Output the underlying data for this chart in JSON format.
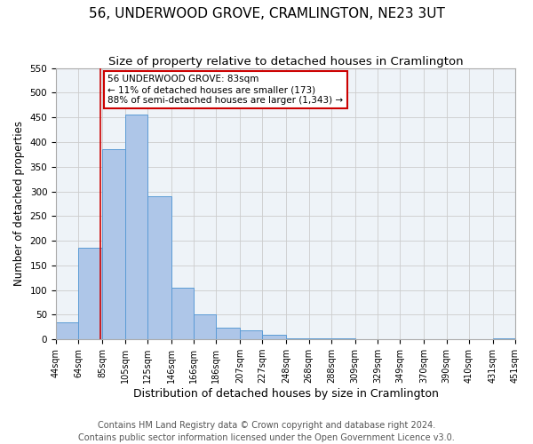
{
  "title": "56, UNDERWOOD GROVE, CRAMLINGTON, NE23 3UT",
  "subtitle": "Size of property relative to detached houses in Cramlington",
  "xlabel": "Distribution of detached houses by size in Cramlington",
  "ylabel": "Number of detached properties",
  "bin_edges": [
    44,
    64,
    85,
    105,
    125,
    146,
    166,
    186,
    207,
    227,
    248,
    268,
    288,
    309,
    329,
    349,
    370,
    390,
    410,
    431,
    451
  ],
  "bar_heights": [
    35,
    185,
    385,
    455,
    290,
    105,
    50,
    23,
    18,
    10,
    2,
    2,
    2,
    0,
    0,
    0,
    0,
    0,
    0,
    2
  ],
  "bar_color": "#aec6e8",
  "bar_edge_color": "#5b9bd5",
  "vline_x": 83,
  "vline_color": "#cc0000",
  "annotation_line1": "56 UNDERWOOD GROVE: 83sqm",
  "annotation_line2": "← 11% of detached houses are smaller (173)",
  "annotation_line3": "88% of semi-detached houses are larger (1,343) →",
  "annotation_box_color": "#ffffff",
  "annotation_box_edge_color": "#cc0000",
  "ylim": [
    0,
    550
  ],
  "yticks": [
    0,
    50,
    100,
    150,
    200,
    250,
    300,
    350,
    400,
    450,
    500,
    550
  ],
  "tick_labels": [
    "44sqm",
    "64sqm",
    "85sqm",
    "105sqm",
    "125sqm",
    "146sqm",
    "166sqm",
    "186sqm",
    "207sqm",
    "227sqm",
    "248sqm",
    "268sqm",
    "288sqm",
    "309sqm",
    "329sqm",
    "349sqm",
    "370sqm",
    "390sqm",
    "410sqm",
    "431sqm",
    "451sqm"
  ],
  "footer_line1": "Contains HM Land Registry data © Crown copyright and database right 2024.",
  "footer_line2": "Contains public sector information licensed under the Open Government Licence v3.0.",
  "title_fontsize": 11,
  "subtitle_fontsize": 9.5,
  "xlabel_fontsize": 9,
  "ylabel_fontsize": 8.5,
  "tick_fontsize": 7,
  "footer_fontsize": 7,
  "grid_color": "#cccccc",
  "bg_color": "#eef3f8"
}
